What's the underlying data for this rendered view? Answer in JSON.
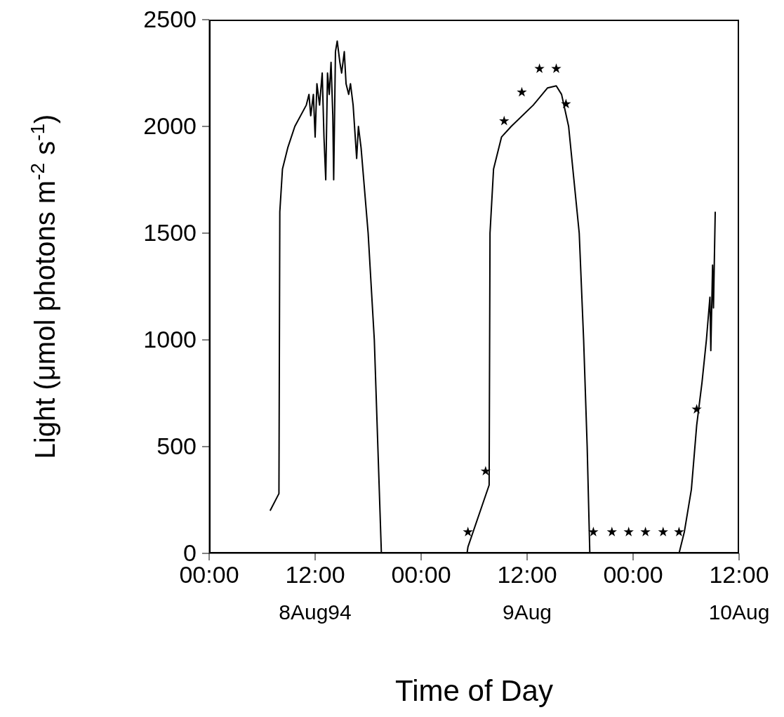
{
  "chart_data": {
    "type": "line",
    "xlabel": "Time of Day",
    "ylabel": "Light (μmol photons m$^{-2}$ s$^{-1}$)",
    "xlim": [
      "--08-08T00:00",
      "--08-10T12:00"
    ],
    "xticks": [
      {
        "value": "--08-08T00:00",
        "label": "00:00"
      },
      {
        "value": "--08-08T12:00",
        "label": "12:00"
      },
      {
        "value": "--08-09T00:00",
        "label": "00:00"
      },
      {
        "value": "--08-09T12:00",
        "label": "12:00"
      },
      {
        "value": "--08-10T00:00",
        "label": "00:00"
      },
      {
        "value": "--08-10T12:00",
        "label": "12:00"
      }
    ],
    "ylim": [
      0,
      2500
    ],
    "yticks": [
      0,
      500,
      1000,
      1500,
      2000,
      2500
    ],
    "grid": false,
    "annotations": [
      "8Aug94",
      "9Aug",
      "10Aug"
    ],
    "series": [
      {
        "color": "#000000",
        "marker": "none",
        "line_style": "solid",
        "x": [
          "--08-08T06:54",
          "--08-08T07:54",
          "--08-08T08:00",
          "--08-08T08:18",
          "--08-08T08:54",
          "--08-08T09:42",
          "--08-08T11:00",
          "--08-08T11:18",
          "--08-08T11:30",
          "--08-08T11:48",
          "--08-08T12:00",
          "--08-08T12:12",
          "--08-08T12:30",
          "--08-08T12:48",
          "--08-08T13:00",
          "--08-08T13:12",
          "--08-08T13:24",
          "--08-08T13:36",
          "--08-08T13:48",
          "--08-08T14:00",
          "--08-08T14:06",
          "--08-08T14:18",
          "--08-08T14:30",
          "--08-08T14:48",
          "--08-08T15:00",
          "--08-08T15:18",
          "--08-08T15:30",
          "--08-08T15:48",
          "--08-08T16:00",
          "--08-08T16:18",
          "--08-08T16:42",
          "--08-08T16:54",
          "--08-08T17:12",
          "--08-08T18:00",
          "--08-08T18:42",
          "--08-08T19:06",
          "--08-08T19:30",
          "--08-09T05:12",
          "--08-09T05:18",
          "--08-09T07:42",
          "--08-09T07:48",
          "--08-09T08:12",
          "--08-09T09:06",
          "--08-09T10:12",
          "--08-09T12:42",
          "--08-09T14:18",
          "--08-09T15:18",
          "--08-09T15:54",
          "--08-09T16:42",
          "--08-09T17:54",
          "--08-09T18:24",
          "--08-09T18:48",
          "--08-09T19:06",
          "--08-10T05:12",
          "--08-10T05:48",
          "--08-10T06:36",
          "--08-10T07:12",
          "--08-10T07:48",
          "--08-10T08:18",
          "--08-10T08:42",
          "--08-10T08:48",
          "--08-10T09:00",
          "--08-10T09:06",
          "--08-10T09:18"
        ],
        "values": [
          200,
          280,
          1600,
          1800,
          1900,
          2000,
          2100,
          2150,
          2050,
          2150,
          1950,
          2200,
          2100,
          2250,
          1950,
          1750,
          2250,
          2150,
          2300,
          2050,
          1750,
          2350,
          2400,
          2300,
          2250,
          2350,
          2200,
          2150,
          2200,
          2100,
          1850,
          2000,
          1900,
          1500,
          1000,
          500,
          0,
          0,
          30,
          320,
          1500,
          1800,
          1950,
          2000,
          2100,
          2180,
          2190,
          2150,
          2000,
          1500,
          1000,
          500,
          0,
          0,
          100,
          300,
          600,
          800,
          1000,
          1200,
          950,
          1350,
          1150,
          1600
        ]
      },
      {
        "type": "scatter",
        "color": "#000000",
        "marker": "star",
        "x": [
          "--08-09T05:18",
          "--08-09T07:18",
          "--08-09T09:24",
          "--08-09T11:24",
          "--08-09T13:24",
          "--08-09T15:18",
          "--08-09T16:24",
          "--08-09T19:30",
          "--08-09T21:36",
          "--08-09T23:30",
          "--08-10T01:24",
          "--08-10T03:24",
          "--08-10T05:12",
          "--08-10T07:12"
        ],
        "values": [
          100,
          385,
          2025,
          2160,
          2270,
          2270,
          2105,
          100,
          100,
          100,
          100,
          100,
          100,
          675
        ]
      }
    ]
  }
}
